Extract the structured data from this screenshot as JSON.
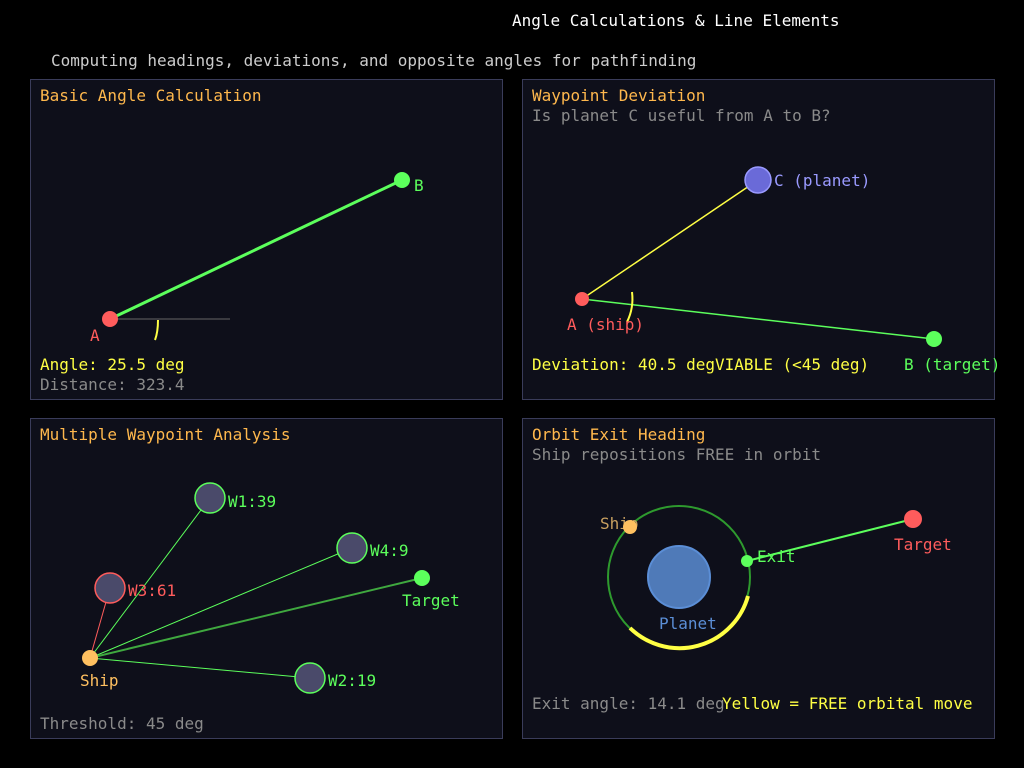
{
  "header": {
    "title": "Angle Calculations & Line Elements",
    "subtitle": "Computing headings, deviations, and opposite angles for pathfinding"
  },
  "colors": {
    "background": "#000000",
    "panel": "#0e0f1a",
    "panel_border": "#3a3c5a",
    "heading": "#ffb84d",
    "green": "#5cff5c",
    "red": "#ff5c5c",
    "yellow": "#ffff44",
    "gray": "#8a8a8a",
    "planet": "#4f7ab8",
    "purple": "#6a6ad8"
  },
  "panel1": {
    "title": "Basic Angle Calculation",
    "point_a": "A",
    "point_b": "B",
    "angle": "Angle: 25.5 deg",
    "distance": "Distance: 323.4"
  },
  "panel2": {
    "title": "Waypoint Deviation",
    "subtitle": "Is planet C useful from A to B?",
    "point_a": "A (ship)",
    "point_b": "B (target)",
    "point_c": "C (planet)",
    "deviation": "Deviation: 40.5 deg",
    "verdict": "VIABLE (<45 deg)"
  },
  "panel3": {
    "title": "Multiple Waypoint Analysis",
    "ship": "Ship",
    "target": "Target",
    "waypoints": [
      {
        "label": "W1:39"
      },
      {
        "label": "W4:9"
      },
      {
        "label": "W3:61"
      },
      {
        "label": "W2:19"
      }
    ],
    "threshold": "Threshold: 45 deg"
  },
  "panel4": {
    "title": "Orbit Exit Heading",
    "subtitle": "Ship repositions FREE in orbit",
    "ship": "Ship",
    "planet": "Planet",
    "exit": "Exit",
    "target": "Target",
    "exit_angle": "Exit angle: 14.1 deg",
    "legend": "Yellow = FREE orbital move"
  }
}
